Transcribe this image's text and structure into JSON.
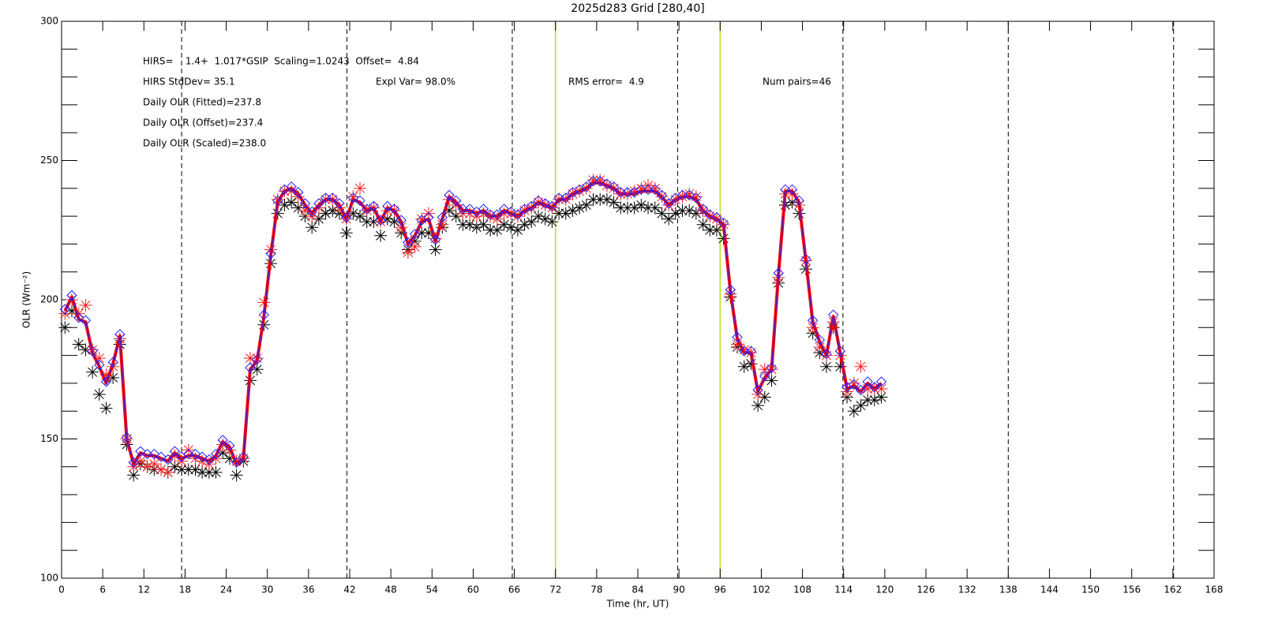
{
  "chart_data": {
    "type": "scatter",
    "title": "2025d283 Grid [280,40]",
    "xlabel": "Time (hr, UT)",
    "ylabel": "OLR (Wm⁻²)",
    "annotations": [
      "HIRS=    1.4+  1.017*GSIP  Scaling=1.0243  Offset=  4.84",
      "HIRS StdDev= 35.1",
      "Expl Var= 98.0%",
      "RMS error=  4.9",
      "Num pairs=46",
      "Daily OLR (Fitted)=237.8",
      "Daily OLR (Offset)=237.4",
      "Daily OLR (Scaled)=238.0"
    ],
    "xlim": [
      0,
      168
    ],
    "ylim": [
      100,
      300
    ],
    "xticks": [
      0,
      6,
      12,
      18,
      24,
      30,
      36,
      42,
      48,
      54,
      60,
      66,
      72,
      78,
      84,
      90,
      96,
      102,
      108,
      114,
      120,
      126,
      132,
      138,
      144,
      150,
      156,
      162,
      168
    ],
    "yticks": [
      100,
      150,
      200,
      250,
      300
    ],
    "yminorticks": [
      110,
      120,
      130,
      140,
      160,
      170,
      180,
      190,
      210,
      220,
      230,
      240,
      260,
      270,
      280,
      290
    ],
    "dashed_lines": {
      "color": "#000000",
      "x": [
        17.5,
        41.6,
        65.7,
        89.8,
        113.9,
        138,
        162.1
      ]
    },
    "highlight_lines": {
      "color": "#b8e020",
      "x": [
        72,
        96
      ]
    },
    "x": [
      0.5,
      1.5,
      2.5,
      3.5,
      4.5,
      5.5,
      6.5,
      7.5,
      8.5,
      9.5,
      10.5,
      11.5,
      12.5,
      13.5,
      14.5,
      15.5,
      16.5,
      17.5,
      18.5,
      19.5,
      20.5,
      21.5,
      22.5,
      23.5,
      24.5,
      25.5,
      26.5,
      27.5,
      28.5,
      29.5,
      30.5,
      31.5,
      32.5,
      33.5,
      34.5,
      35.5,
      36.5,
      37.5,
      38.5,
      39.5,
      40.5,
      41.5,
      42.5,
      43.5,
      44.5,
      45.5,
      46.5,
      47.5,
      48.5,
      49.5,
      50.5,
      51.5,
      52.5,
      53.5,
      54.5,
      55.5,
      56.5,
      57.5,
      58.5,
      59.5,
      60.5,
      61.5,
      62.5,
      63.5,
      64.5,
      65.5,
      66.5,
      67.5,
      68.5,
      69.5,
      70.5,
      71.5,
      72.5,
      73.5,
      74.5,
      75.5,
      76.5,
      77.5,
      78.5,
      79.5,
      80.5,
      81.5,
      82.5,
      83.5,
      84.5,
      85.5,
      86.5,
      87.5,
      88.5,
      89.5,
      90.5,
      91.5,
      92.5,
      93.5,
      94.5,
      95.5,
      96.5,
      97.5,
      98.5,
      99.5,
      100.5,
      101.5,
      102.5,
      103.5,
      104.5,
      105.5,
      106.5,
      107.5,
      108.5,
      109.5,
      110.5,
      111.5,
      112.5,
      113.5,
      114.5,
      115.5,
      116.5,
      117.5,
      118.5,
      119.5
    ],
    "series": [
      {
        "color": "#000000",
        "marker": "asterisk",
        "values": [
          190,
          196,
          184,
          182,
          174,
          166,
          161,
          172,
          184,
          148,
          137,
          141,
          140,
          139,
          139,
          138,
          140,
          139,
          139,
          139,
          138,
          138,
          138,
          145,
          143,
          137,
          142,
          171,
          175,
          191,
          213,
          231,
          234,
          235,
          233,
          230,
          226,
          229,
          231,
          232,
          231,
          224,
          231,
          230,
          228,
          228,
          223,
          229,
          228,
          224,
          218,
          221,
          224,
          224,
          218,
          226,
          232,
          230,
          227,
          227,
          226,
          227,
          225,
          225,
          227,
          226,
          225,
          227,
          228,
          230,
          229,
          228,
          231,
          231,
          232,
          233,
          234,
          236,
          236,
          236,
          235,
          233,
          233,
          233,
          234,
          233,
          233,
          231,
          229,
          231,
          232,
          232,
          231,
          227,
          225,
          225,
          222,
          201,
          183,
          176,
          177,
          162,
          165,
          171,
          206,
          234,
          235,
          231,
          211,
          188,
          181,
          176,
          190,
          176,
          165,
          160,
          162,
          164,
          164,
          165
        ]
      },
      {
        "color": "#ff2020",
        "marker": "asterisk",
        "values": [
          195,
          200,
          195,
          198,
          182,
          179,
          173,
          176,
          186,
          150,
          140,
          142,
          140,
          141,
          139,
          138,
          144,
          142,
          146,
          143,
          142,
          141,
          143,
          148,
          146,
          142,
          143,
          179,
          179,
          199,
          218,
          236,
          239,
          239,
          237,
          232,
          230,
          233,
          236,
          236,
          233,
          229,
          237,
          240,
          232,
          233,
          228,
          232,
          232,
          226,
          217,
          219,
          229,
          231,
          222,
          227,
          236,
          234,
          231,
          231,
          230,
          231,
          230,
          229,
          231,
          231,
          230,
          232,
          233,
          235,
          234,
          233,
          236,
          236,
          238,
          239,
          240,
          243,
          243,
          241,
          240,
          238,
          238,
          239,
          240,
          241,
          240,
          237,
          234,
          236,
          237,
          238,
          237,
          232,
          230,
          229,
          227,
          202,
          184,
          182,
          181,
          166,
          175,
          175,
          208,
          238,
          238,
          234,
          214,
          190,
          183,
          180,
          192,
          180,
          167,
          170,
          176,
          168,
          168,
          168
        ]
      },
      {
        "color": "#2020ff",
        "line_color": "#ff0000",
        "marker": "diamond",
        "line": true,
        "values": [
          196,
          201,
          193,
          192,
          181,
          176,
          170,
          177,
          187,
          150,
          141,
          145,
          144,
          144,
          143,
          142,
          145,
          143,
          144,
          144,
          143,
          142,
          144,
          149,
          147,
          141,
          143,
          175,
          178,
          194,
          216,
          235,
          239,
          240,
          238,
          234,
          231,
          234,
          236,
          236,
          234,
          229,
          236,
          235,
          232,
          233,
          228,
          233,
          232,
          228,
          220,
          223,
          228,
          229,
          221,
          229,
          237,
          235,
          232,
          232,
          231,
          232,
          230,
          230,
          232,
          231,
          230,
          232,
          233,
          235,
          234,
          233,
          236,
          236,
          238,
          239,
          240,
          242,
          242,
          241,
          240,
          238,
          238,
          238,
          239,
          239,
          239,
          237,
          234,
          236,
          237,
          237,
          236,
          232,
          230,
          229,
          227,
          203,
          186,
          181,
          181,
          167,
          172,
          175,
          209,
          239,
          239,
          235,
          214,
          192,
          185,
          180,
          194,
          181,
          168,
          169,
          167,
          170,
          168,
          170
        ]
      }
    ]
  }
}
